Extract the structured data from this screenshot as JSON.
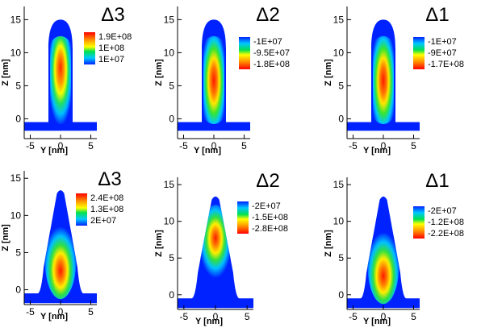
{
  "chart_data": [
    {
      "type": "heatmap",
      "shape": "fin",
      "title": "Δ3",
      "xlabel": "Y [nm]",
      "ylabel": "Z [nm]",
      "xlim": [
        -6,
        6
      ],
      "ylim": [
        -3,
        17
      ],
      "xticks": [
        "-5",
        "0",
        "5"
      ],
      "yticks": [
        "0",
        "5",
        "10",
        "15"
      ],
      "legend": {
        "labels": [
          "1.9E+08",
          "1E+08",
          "1E+07"
        ],
        "colors": [
          "#ff0000",
          "#00e050",
          "#0033ff"
        ]
      },
      "colorscale_ends": [
        "#ff0000",
        "#0000ff"
      ]
    },
    {
      "type": "heatmap",
      "shape": "fin",
      "title": "Δ2",
      "xlabel": "Y [nm]",
      "ylabel": "Z [nm]",
      "xlim": [
        -6,
        6
      ],
      "ylim": [
        -3,
        17
      ],
      "xticks": [
        "-5",
        "0",
        "5"
      ],
      "yticks": [
        "0",
        "5",
        "10",
        "15"
      ],
      "legend": {
        "labels": [
          "-1E+07",
          "-9.5E+07",
          "-1.8E+08"
        ],
        "colors": [
          "#0033ff",
          "#00e050",
          "#ff0000"
        ]
      },
      "colorscale_ends": [
        "#ff0000",
        "#0000ff"
      ]
    },
    {
      "type": "heatmap",
      "shape": "fin",
      "title": "Δ1",
      "xlabel": "Y [nm]",
      "ylabel": "Z [nm]",
      "xlim": [
        -6,
        6
      ],
      "ylim": [
        -3,
        17
      ],
      "xticks": [
        "-5",
        "0",
        "5"
      ],
      "yticks": [
        "0",
        "5",
        "10",
        "15"
      ],
      "legend": {
        "labels": [
          "-1E+07",
          "-9E+07",
          "-1.7E+08"
        ],
        "colors": [
          "#0033ff",
          "#00e050",
          "#ff0000"
        ]
      },
      "colorscale_ends": [
        "#ff0000",
        "#0000ff"
      ]
    },
    {
      "type": "heatmap",
      "shape": "triangle",
      "title": "Δ3",
      "xlabel": "Y [nm]",
      "ylabel": "Z [nm]",
      "xlim": [
        -6,
        6
      ],
      "ylim": [
        -2,
        16
      ],
      "xticks": [
        "-5",
        "0",
        "5"
      ],
      "yticks": [
        "0",
        "5",
        "10",
        "15"
      ],
      "legend": {
        "labels": [
          "2.4E+08",
          "1.3E+08",
          "2E+07"
        ],
        "colors": [
          "#ff0000",
          "#00e050",
          "#0033ff"
        ]
      },
      "colorscale_ends": [
        "#ff0000",
        "#0000ff"
      ]
    },
    {
      "type": "heatmap",
      "shape": "triangle",
      "title": "Δ2",
      "xlabel": "Y [nm]",
      "ylabel": "Z [nm]",
      "xlim": [
        -6,
        6
      ],
      "ylim": [
        -2,
        16
      ],
      "xticks": [
        "-5",
        "0",
        "5"
      ],
      "yticks": [
        "0",
        "5",
        "10",
        "15"
      ],
      "legend": {
        "labels": [
          "-2E+07",
          "-1.5E+08",
          "-2.8E+08"
        ],
        "colors": [
          "#0033ff",
          "#00e050",
          "#ff0000"
        ]
      },
      "colorscale_ends": [
        "#ff0000",
        "#0000ff"
      ]
    },
    {
      "type": "heatmap",
      "shape": "triangle",
      "title": "Δ1",
      "xlabel": "Y [nm]",
      "ylabel": "Z [nm]",
      "xlim": [
        -6,
        6
      ],
      "ylim": [
        -2,
        16
      ],
      "xticks": [
        "-5",
        "0",
        "5"
      ],
      "yticks": [
        "0",
        "5",
        "10",
        "15"
      ],
      "legend": {
        "labels": [
          "-2E+07",
          "-1.2E+08",
          "-2.2E+08"
        ],
        "colors": [
          "#0033ff",
          "#00e050",
          "#ff0000"
        ]
      },
      "colorscale_ends": [
        "#ff0000",
        "#0000ff"
      ]
    }
  ]
}
